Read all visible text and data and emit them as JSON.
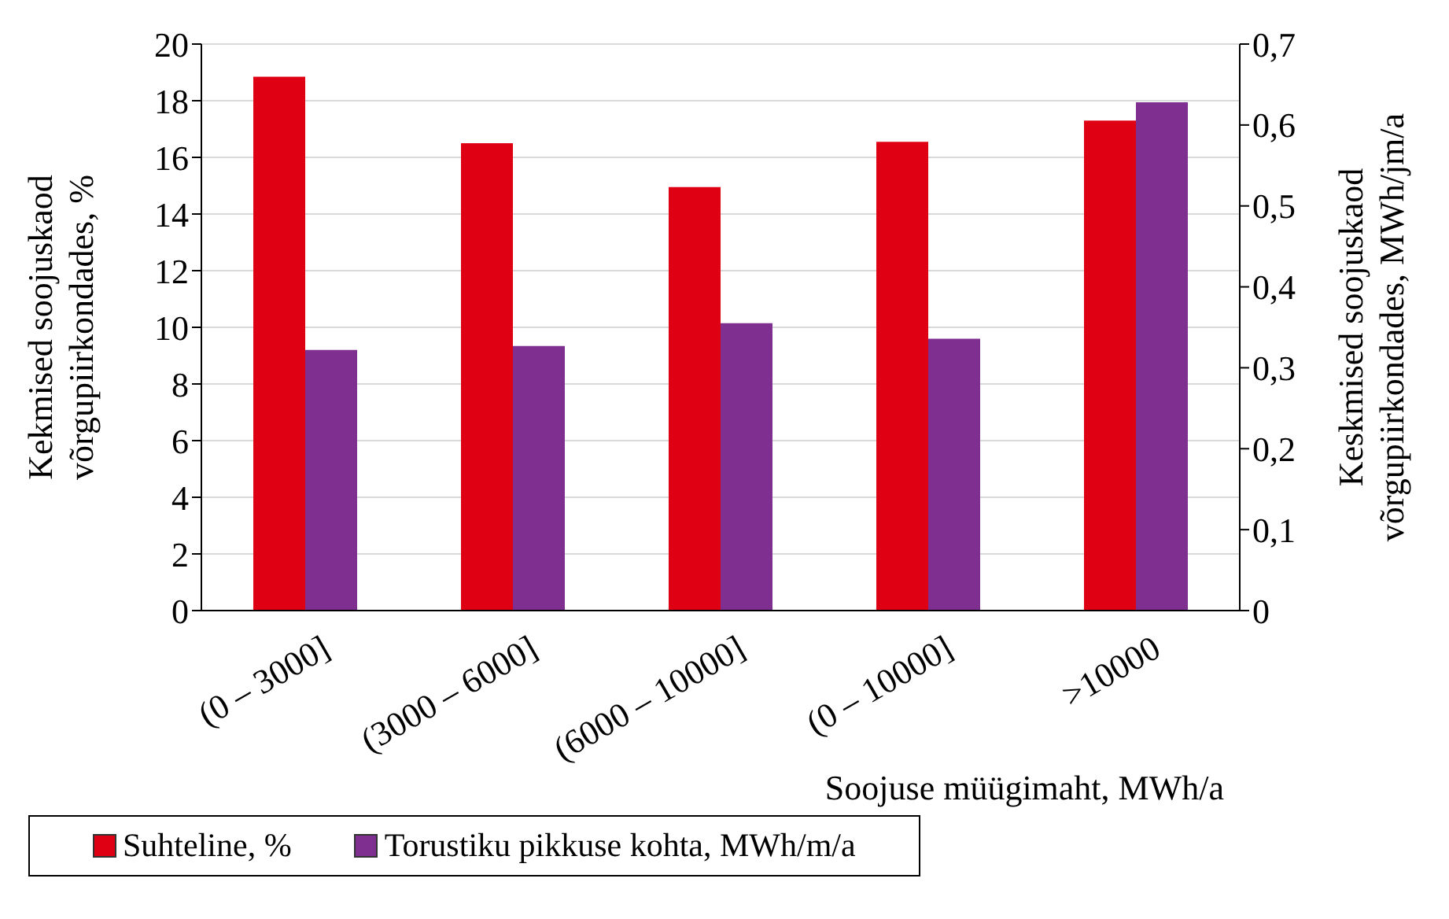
{
  "chart_data": {
    "type": "bar",
    "xlabel": "Soojuse müügimaht, MWh/a",
    "ylabel": "Kekmised soojuskaod võrgupiirkondades, %",
    "y2label": "Keskmised soojuskaod võrgupiirkondades, MWh/jm/a",
    "categories": [
      "(0 – 3000]",
      "(3000 – 6000]",
      "(6000 – 10000]",
      "(0 – 10000]",
      ">10000"
    ],
    "series": [
      {
        "name": "Suhteline, %",
        "color": "#e00014",
        "values": [
          18.85,
          16.5,
          14.95,
          16.55,
          17.3
        ]
      },
      {
        "name": "Torustiku pikkuse kohta, MWh/m/a",
        "color": "#7f2f8f",
        "values": [
          0.322,
          0.327,
          0.355,
          0.336,
          0.628
        ],
        "axis": "y2"
      }
    ],
    "ylim": [
      0,
      20
    ],
    "yticks": [
      0,
      2,
      4,
      6,
      8,
      10,
      12,
      14,
      16,
      18,
      20
    ],
    "y2lim": [
      0,
      0.7
    ],
    "y2ticks": [
      0,
      {
        "value": 0.1,
        "label": "0,1"
      },
      {
        "value": 0.2,
        "label": "0,2"
      },
      {
        "value": 0.3,
        "label": "0,3"
      },
      {
        "value": 0.4,
        "label": "0,4"
      },
      {
        "value": 0.5,
        "label": "0,5"
      },
      {
        "value": 0.6,
        "label": "0,6"
      },
      {
        "value": 0.7,
        "label": "0,7"
      }
    ],
    "grid": "y",
    "legend": "bottom"
  }
}
